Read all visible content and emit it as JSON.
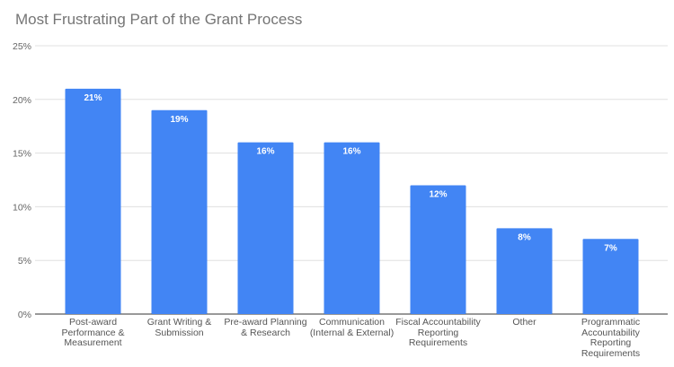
{
  "chart_data": {
    "type": "bar",
    "title": "Most Frustrating Part of the Grant Process",
    "xlabel": "",
    "ylabel": "",
    "categories": [
      "Post-award Performance & Measurement",
      "Grant Writing & Submission",
      "Pre-award Planning & Research",
      "Communication (Internal & External)",
      "Fiscal Accountability Reporting Requirements",
      "Other",
      "Programmatic Accountability Reporting Requirements"
    ],
    "values": [
      21,
      19,
      16,
      16,
      12,
      8,
      7
    ],
    "data_labels": [
      "21%",
      "19%",
      "16%",
      "16%",
      "12%",
      "8%",
      "7%"
    ],
    "ylim": [
      0,
      25
    ],
    "yticks": [
      0,
      5,
      10,
      15,
      20,
      25
    ],
    "ytick_labels": [
      "0%",
      "5%",
      "10%",
      "15%",
      "20%",
      "25%"
    ],
    "grid": true,
    "legend": "none",
    "colors": {
      "bar": "#4285f4",
      "grid": "#e0e0e0",
      "axis": "#333333"
    }
  }
}
